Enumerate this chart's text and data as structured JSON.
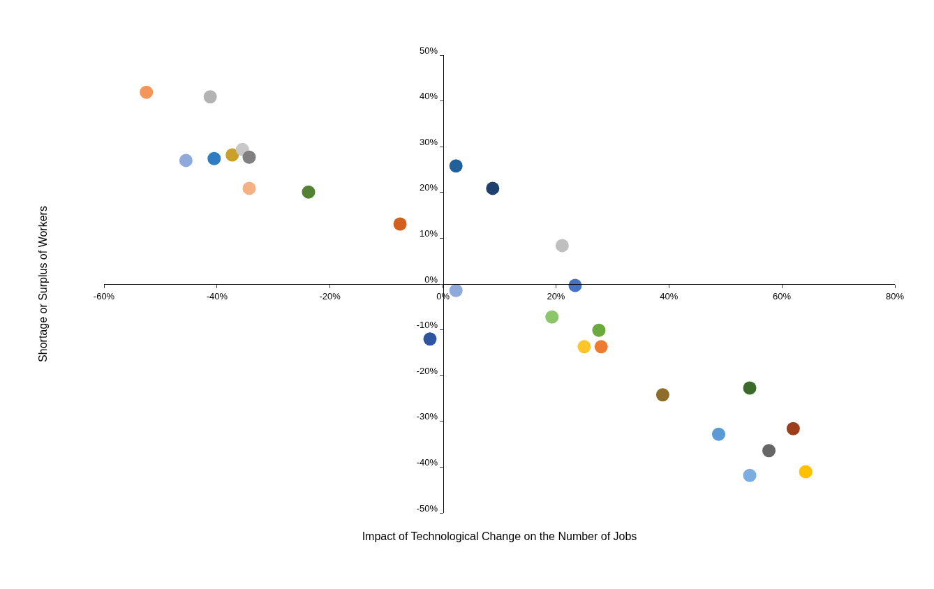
{
  "chart_data": {
    "type": "scatter",
    "xlabel": "Impact of Technological Change on the Number of Jobs",
    "ylabel": "Shortage or Surplus of Workers",
    "xlim": [
      -60,
      80
    ],
    "ylim": [
      -50,
      50
    ],
    "xticks": [
      {
        "value": -60,
        "label": "-60%"
      },
      {
        "value": -40,
        "label": "-40%"
      },
      {
        "value": -20,
        "label": "-20%"
      },
      {
        "value": 0,
        "label": "0%"
      },
      {
        "value": 20,
        "label": "20%"
      },
      {
        "value": 40,
        "label": "40%"
      },
      {
        "value": 60,
        "label": "60%"
      },
      {
        "value": 80,
        "label": "80%"
      }
    ],
    "yticks": [
      {
        "value": -50,
        "label": "-50%"
      },
      {
        "value": -40,
        "label": "-40%"
      },
      {
        "value": -30,
        "label": "-30%"
      },
      {
        "value": -20,
        "label": "-20%"
      },
      {
        "value": -10,
        "label": "-10%"
      },
      {
        "value": 0,
        "label": "0%"
      },
      {
        "value": 10,
        "label": "10%"
      },
      {
        "value": 20,
        "label": "20%"
      },
      {
        "value": 30,
        "label": "30%"
      },
      {
        "value": 40,
        "label": "40%"
      },
      {
        "value": 50,
        "label": "50%"
      }
    ],
    "marker": "circle",
    "x": [
      -52.5,
      -41.2,
      -45.5,
      -40.5,
      -37.3,
      -35.5,
      -34.3,
      -34.3,
      -23.8,
      -7.6,
      2.3,
      8.8,
      21.1,
      23.4,
      2.3,
      -2.3,
      19.3,
      27.6,
      25.0,
      28.0,
      38.9,
      54.3,
      48.8,
      62.0,
      57.7,
      54.3,
      64.2
    ],
    "values": [
      41.9,
      40.9,
      27.0,
      27.4,
      28.2,
      29.4,
      27.7,
      20.9,
      20.1,
      13.1,
      25.8,
      20.9,
      8.4,
      -0.3,
      -1.4,
      -12.0,
      -7.2,
      -10.1,
      -13.7,
      -13.7,
      -24.2,
      -22.7,
      -32.8,
      -31.6,
      -36.4,
      -41.8,
      -41.0
    ],
    "colors": [
      "#f4955a",
      "#b3b3b3",
      "#8eaadb",
      "#2e7cc4",
      "#c9a02a",
      "#c8c8c8",
      "#808080",
      "#f4b183",
      "#548235",
      "#d35f1f",
      "#22609c",
      "#1f3f6e",
      "#bfbfbf",
      "#4472c4",
      "#8ea9db",
      "#2f54a0",
      "#8cc56a",
      "#6aab3c",
      "#ffc425",
      "#ee7b30",
      "#8c6d2c",
      "#3c6a2a",
      "#5b9bd5",
      "#9c3e1a",
      "#666666",
      "#7aaee0",
      "#ffc000"
    ]
  }
}
